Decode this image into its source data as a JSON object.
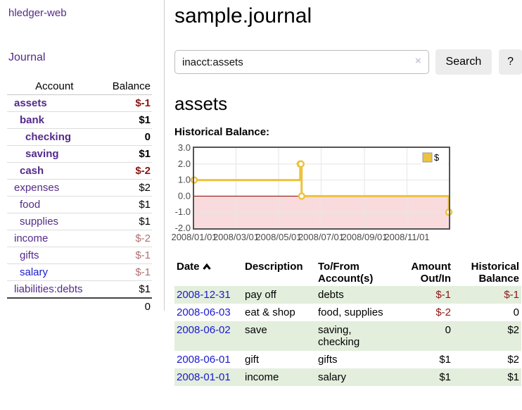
{
  "app": {
    "title": "hledger-web",
    "nav_journal": "Journal"
  },
  "sidebar": {
    "col_account": "Account",
    "col_balance": "Balance",
    "rows": [
      {
        "name": "assets",
        "balance": "$-1",
        "depth": 1,
        "bold": true,
        "neg": "strong"
      },
      {
        "name": "bank",
        "balance": "$1",
        "depth": 2,
        "bold": true,
        "neg": "none"
      },
      {
        "name": "checking",
        "balance": "0",
        "depth": 3,
        "bold": true,
        "neg": "none"
      },
      {
        "name": "saving",
        "balance": "$1",
        "depth": 3,
        "bold": true,
        "neg": "none"
      },
      {
        "name": "cash",
        "balance": "$-2",
        "depth": 2,
        "bold": true,
        "neg": "strong"
      },
      {
        "name": "expenses",
        "balance": "$2",
        "depth": 1,
        "bold": false,
        "neg": "none"
      },
      {
        "name": "food",
        "balance": "$1",
        "depth": 2,
        "bold": false,
        "neg": "none"
      },
      {
        "name": "supplies",
        "balance": "$1",
        "depth": 2,
        "bold": false,
        "neg": "none"
      },
      {
        "name": "income",
        "balance": "$-2",
        "depth": 1,
        "bold": false,
        "neg": "muted"
      },
      {
        "name": "gifts",
        "balance": "$-1",
        "depth": 2,
        "bold": false,
        "neg": "muted"
      },
      {
        "name": "salary",
        "balance": "$-1",
        "depth": 2,
        "bold": false,
        "neg": "muted",
        "link": "blue"
      },
      {
        "name": "liabilities:debts",
        "balance": "$1",
        "depth": 1,
        "bold": false,
        "neg": "none"
      }
    ],
    "total": "0"
  },
  "header": {
    "title": "sample.journal"
  },
  "search": {
    "value": "inacct:assets",
    "clear_icon": "×",
    "button": "Search",
    "help_button": "?"
  },
  "account_page": {
    "heading": "assets",
    "chart_label": "Historical Balance:"
  },
  "chart_data": {
    "type": "line",
    "step": true,
    "title": "Historical Balance:",
    "x_domain": [
      "2008-01-01",
      "2008-12-31"
    ],
    "ylim": [
      -2,
      3
    ],
    "yticks": [
      {
        "value": 3,
        "label": "3.0"
      },
      {
        "value": 2,
        "label": "2.0"
      },
      {
        "value": 1,
        "label": "1.0"
      },
      {
        "value": 0,
        "label": "0.0"
      },
      {
        "value": -1,
        "label": "-1.0"
      },
      {
        "value": -2,
        "label": "-2.0"
      }
    ],
    "xticks": [
      {
        "date": "2008-01-01",
        "label": "2008/01/01"
      },
      {
        "date": "2008-03-01",
        "label": "2008/03/01"
      },
      {
        "date": "2008-05-01",
        "label": "2008/05/01"
      },
      {
        "date": "2008-07-01",
        "label": "2008/07/01"
      },
      {
        "date": "2008-09-01",
        "label": "2008/09/01"
      },
      {
        "date": "2008-11-01",
        "label": "2008/11/01"
      }
    ],
    "series": [
      {
        "name": "$",
        "color": "#edc240",
        "points": [
          {
            "date": "2008-01-01",
            "value": 1
          },
          {
            "date": "2008-06-01",
            "value": 2
          },
          {
            "date": "2008-06-02",
            "value": 2
          },
          {
            "date": "2008-06-03",
            "value": 0
          },
          {
            "date": "2008-12-31",
            "value": -1
          }
        ]
      }
    ],
    "legend_position": "top-right",
    "negative_region_color": "#f9dbde",
    "zero_line_color": "#8b0000",
    "grid_color": "#e6e6e6",
    "border_color": "#545454",
    "tick_text_color": "#4a4a4a"
  },
  "register": {
    "columns": {
      "date": "Date",
      "description": "Description",
      "tofrom": "To/From Account(s)",
      "amount": "Amount Out/In",
      "balance": "Historical Balance"
    },
    "sort_column": "Date",
    "sort_direction": "ascending",
    "rows": [
      {
        "date": "2008-12-31",
        "description": "pay off",
        "accounts": "debts",
        "amount": "$-1",
        "balance": "$-1",
        "amount_negative": true,
        "balance_negative": true
      },
      {
        "date": "2008-06-03",
        "description": "eat & shop",
        "accounts": "food, supplies",
        "amount": "$-2",
        "balance": "0",
        "amount_negative": true,
        "balance_negative": false
      },
      {
        "date": "2008-06-02",
        "description": "save",
        "accounts": "saving, checking",
        "amount": "0",
        "balance": "$2",
        "amount_negative": false,
        "balance_negative": false
      },
      {
        "date": "2008-06-01",
        "description": "gift",
        "accounts": "gifts",
        "amount": "$1",
        "balance": "$2",
        "amount_negative": false,
        "balance_negative": false
      },
      {
        "date": "2008-01-01",
        "description": "income",
        "accounts": "salary",
        "amount": "$1",
        "balance": "$1",
        "amount_negative": false,
        "balance_negative": false
      }
    ]
  },
  "colors": {
    "link_purple": "#542a8b",
    "link_blue": "#1a1acd",
    "negative_strong": "#8b1515",
    "negative_muted": "#b07070",
    "row_stripe_green": "#e3eedd",
    "series_gold": "#edc240"
  }
}
